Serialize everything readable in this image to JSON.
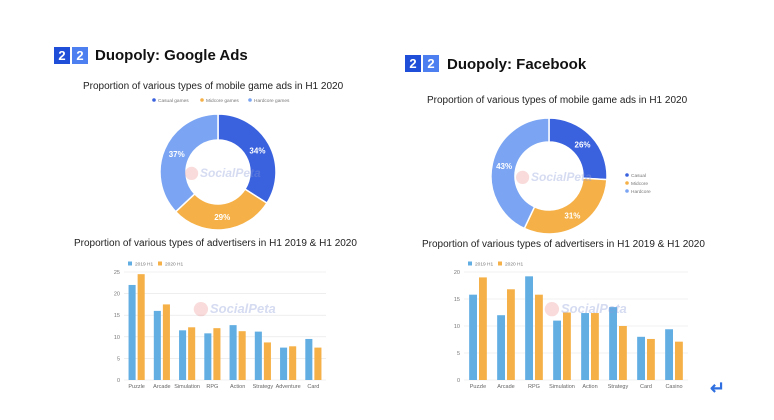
{
  "watermark": "SocialPeta",
  "panels": [
    {
      "badge": [
        "2",
        "2"
      ],
      "heading": "Duopoly: Google Ads",
      "pie_title": "Proportion of various types of mobile game ads in H1 2020",
      "bar_title": "Proportion of various types of advertisers in  H1 2019 & H1 2020"
    },
    {
      "badge": [
        "2",
        "2"
      ],
      "heading": "Duopoly: Facebook",
      "pie_title": "Proportion of various types of mobile game ads in H1 2020",
      "bar_title": "Proportion of various types of advertisers in  H1 2019 & H1 2020"
    }
  ],
  "colors": {
    "casual": "#3a62de",
    "midcore": "#f5b147",
    "hardcore": "#7ba5f2",
    "h1_2019": "#62aee3",
    "h1_2020": "#f5b147",
    "badge_dark": "#1f4fd8",
    "badge_light": "#4d7ff0"
  },
  "chart_data": [
    {
      "type": "pie",
      "donut": true,
      "title": "Proportion of various types of mobile game ads in H1 2020",
      "labels": [
        "Casual games",
        "Midcore games",
        "Hardcore games"
      ],
      "values": [
        34,
        29,
        37
      ],
      "value_labels": [
        "34%",
        "29%",
        "37%"
      ],
      "legend": "top"
    },
    {
      "type": "bar",
      "title": "Proportion of various types of advertisers in  H1 2019 & H1 2020",
      "categories": [
        "Puzzle",
        "Arcade",
        "Simulation",
        "RPG",
        "Action",
        "Strategy",
        "Adventure",
        "Card"
      ],
      "series": [
        {
          "name": "2019 H1",
          "values": [
            22,
            16,
            11.5,
            10.8,
            12.7,
            11.2,
            7.5,
            9.5
          ]
        },
        {
          "name": "2020 H1",
          "values": [
            24.5,
            17.5,
            12.2,
            12,
            11.3,
            8.7,
            7.8,
            7.5
          ]
        }
      ],
      "ylim": [
        0,
        25
      ],
      "yticks": [
        "0",
        "5",
        "10",
        "15",
        "20",
        "25"
      ],
      "grid": true,
      "legend": "top-left"
    },
    {
      "type": "pie",
      "donut": true,
      "title": "Proportion of various types of mobile game ads in H1 2020",
      "labels": [
        "Casual",
        "Midcore",
        "Hardcore"
      ],
      "values": [
        26,
        31,
        43
      ],
      "value_labels": [
        "26%",
        "31%",
        "43%"
      ],
      "legend": "right"
    },
    {
      "type": "bar",
      "title": "Proportion of various types of advertisers in  H1 2019 & H1 2020",
      "categories": [
        "Puzzle",
        "Arcade",
        "RPG",
        "Simulation",
        "Action",
        "Strategy",
        "Card",
        "Casino"
      ],
      "series": [
        {
          "name": "2019 H1",
          "values": [
            15.8,
            12,
            19.2,
            11,
            12.4,
            13.5,
            8,
            9.4
          ]
        },
        {
          "name": "2020 H1",
          "values": [
            19,
            16.8,
            15.8,
            12.5,
            12.4,
            10,
            7.6,
            7.1
          ]
        }
      ],
      "ylim": [
        0,
        20
      ],
      "yticks": [
        "0",
        "5",
        "10",
        "15",
        "20"
      ],
      "grid": true,
      "legend": "top-left"
    }
  ]
}
